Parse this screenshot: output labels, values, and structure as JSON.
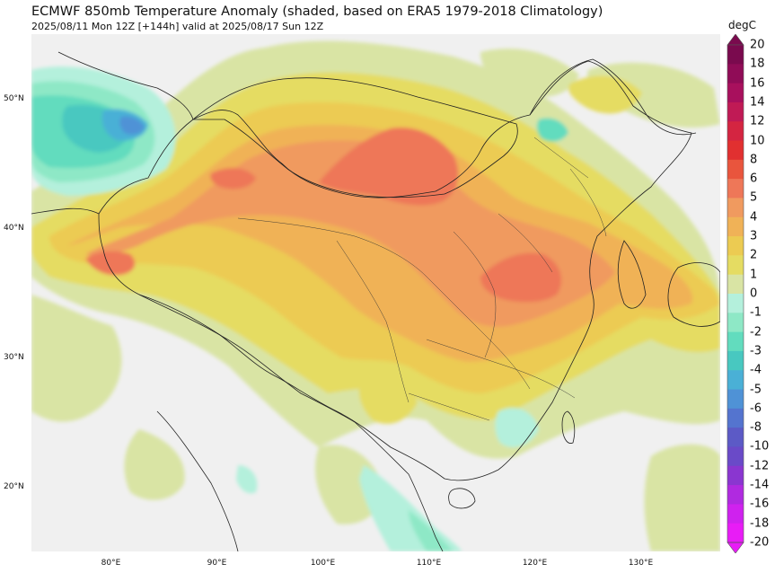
{
  "header": {
    "title": "ECMWF 850mb Temperature Anomaly (shaded, based on ERA5 1979-2018 Climatology)",
    "subtitle": "2025/08/11 Mon 12Z [+144h] valid at 2025/08/17 Sun 12Z"
  },
  "map": {
    "lon_range": [
      72.5,
      137.5
    ],
    "lat_range": [
      15,
      55
    ],
    "lat_ticks": [
      {
        "value": 50,
        "label": "50°N"
      },
      {
        "value": 40,
        "label": "40°N"
      },
      {
        "value": 30,
        "label": "30°N"
      },
      {
        "value": 20,
        "label": "20°N"
      }
    ],
    "lon_ticks": [
      {
        "value": 80,
        "label": "80°E"
      },
      {
        "value": 90,
        "label": "90°E"
      },
      {
        "value": 100,
        "label": "100°E"
      },
      {
        "value": 110,
        "label": "110°E"
      },
      {
        "value": 120,
        "label": "120°E"
      },
      {
        "value": 130,
        "label": "130°E"
      }
    ],
    "anomaly_regions": [
      {
        "name": "Mongolia warm core",
        "anomaly": 6,
        "lon": 105,
        "lat": 46
      },
      {
        "name": "North China Plain warm core",
        "anomaly": 6,
        "lon": 116,
        "lat": 36
      },
      {
        "name": "Xinjiang warm area",
        "anomaly": 5,
        "lon": 80,
        "lat": 38
      },
      {
        "name": "Kazakhstan cool area",
        "anomaly": -5,
        "lon": 78,
        "lat": 48
      },
      {
        "name": "Bay of Bengal cool area",
        "anomaly": -2,
        "lon": 103,
        "lat": 18
      }
    ]
  },
  "colorbar": {
    "unit": "degC",
    "levels": [
      {
        "label": "20",
        "color": "#7a0a4e"
      },
      {
        "label": "18",
        "color": "#900c57"
      },
      {
        "label": "16",
        "color": "#a8105d"
      },
      {
        "label": "14",
        "color": "#c01a55"
      },
      {
        "label": "12",
        "color": "#d42541"
      },
      {
        "label": "10",
        "color": "#e13030"
      },
      {
        "label": "8",
        "color": "#e9553d"
      },
      {
        "label": "6",
        "color": "#ee7758"
      },
      {
        "label": "5",
        "color": "#f09a5f"
      },
      {
        "label": "4",
        "color": "#f0b257"
      },
      {
        "label": "3",
        "color": "#eccb52"
      },
      {
        "label": "2",
        "color": "#e5dc62"
      },
      {
        "label": "1",
        "color": "#d9e4a4"
      },
      {
        "label": "0",
        "color": "#f0f0f0"
      },
      {
        "label": "-1",
        "color": "#b4f0dc"
      },
      {
        "label": "-2",
        "color": "#8ee8c6"
      },
      {
        "label": "-3",
        "color": "#62dcbe"
      },
      {
        "label": "-4",
        "color": "#48c8c0"
      },
      {
        "label": "-5",
        "color": "#4ab0d6"
      },
      {
        "label": "-6",
        "color": "#4f92d6"
      },
      {
        "label": "-8",
        "color": "#5474cf"
      },
      {
        "label": "-10",
        "color": "#5c5ac6"
      },
      {
        "label": "-12",
        "color": "#6a4ac8"
      },
      {
        "label": "-14",
        "color": "#8a36d0"
      },
      {
        "label": "-16",
        "color": "#b02ae0"
      },
      {
        "label": "-18",
        "color": "#cf22ee"
      },
      {
        "label": "-20",
        "color": "#e81cf6"
      }
    ]
  }
}
